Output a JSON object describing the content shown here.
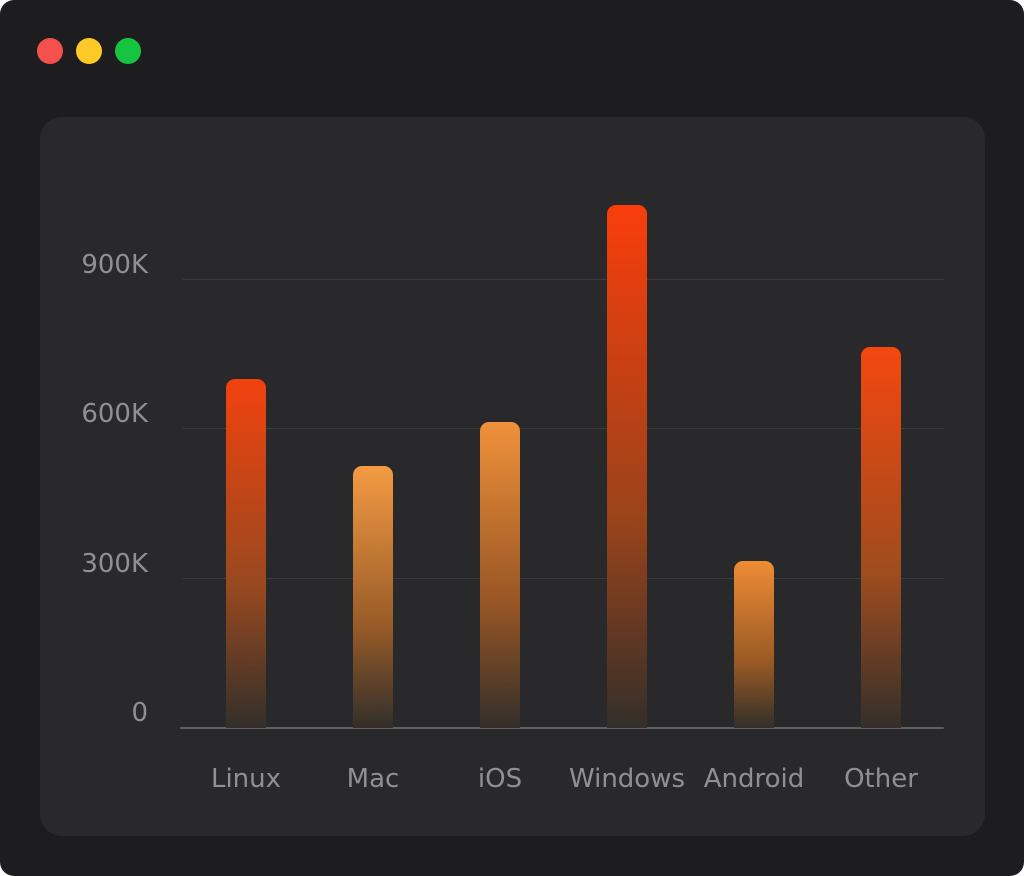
{
  "window": {
    "controls": [
      {
        "name": "close-button",
        "color": "#f4514d"
      },
      {
        "name": "minimize-button",
        "color": "#fcc926"
      },
      {
        "name": "maximize-button",
        "color": "#16c440"
      }
    ]
  },
  "chart_data": {
    "type": "bar",
    "title": "",
    "categories": [
      "Linux",
      "Mac",
      "iOS",
      "Windows",
      "Android",
      "Other"
    ],
    "values": [
      700,
      525,
      615,
      1050,
      335,
      765
    ],
    "value_unit": "K",
    "y_ticks": [
      {
        "label": "0",
        "value": 0
      },
      {
        "label": "300K",
        "value": 300
      },
      {
        "label": "600K",
        "value": 600
      },
      {
        "label": "900K",
        "value": 900
      }
    ],
    "ylim": [
      0,
      1105
    ],
    "grid": true,
    "legend_position": "none",
    "bar_gradient_top": [
      "#f2420e",
      "#f39b43",
      "#f0913a",
      "#f93d0b",
      "#ee8c34",
      "#f4470f"
    ],
    "bar_gradient_mid": [
      "#96491f",
      "#9a5c28",
      "#965524",
      "#9a431a",
      "#9a5a24",
      "#9e4c1e"
    ],
    "bar_gradient_bottom": "#332f2a",
    "axis_color": "#606060",
    "grid_color": "#3b3b3c",
    "tick_label_color": "#909094"
  }
}
